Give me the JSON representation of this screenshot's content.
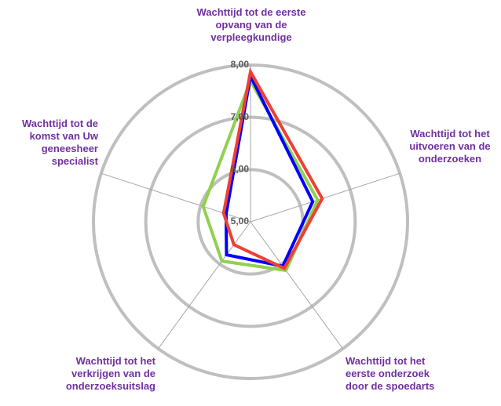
{
  "chart_data": {
    "type": "radar",
    "categories": [
      "Wachttijd tot de eerste opvang van de verpleegkundige",
      "Wachttijd tot het uitvoeren van de onderzoeken",
      "Wachttijd tot het eerste onderzoek door de spoedarts",
      "Wachttijd tot  het verkrijgen van de onderzoeksuitslag",
      "Wachttijd tot de komst van Uw geneesheer specialist"
    ],
    "series": [
      {
        "color": "#92d050",
        "values": [
          7.7,
          6.35,
          6.15,
          5.93,
          5.95
        ]
      },
      {
        "color": "#0000ff",
        "values": [
          7.79,
          6.25,
          6.05,
          5.78,
          5.49
        ]
      },
      {
        "color": "#ee4035",
        "values": [
          7.87,
          6.44,
          6.1,
          5.54,
          5.54
        ]
      }
    ],
    "ylim": [
      5,
      8
    ],
    "yticks": [
      {
        "value": 5,
        "label": "5,00"
      },
      {
        "value": 6,
        "label": "6,00"
      },
      {
        "value": 7,
        "label": "7,00"
      },
      {
        "value": 8,
        "label": "8,00"
      }
    ],
    "grid": true
  }
}
